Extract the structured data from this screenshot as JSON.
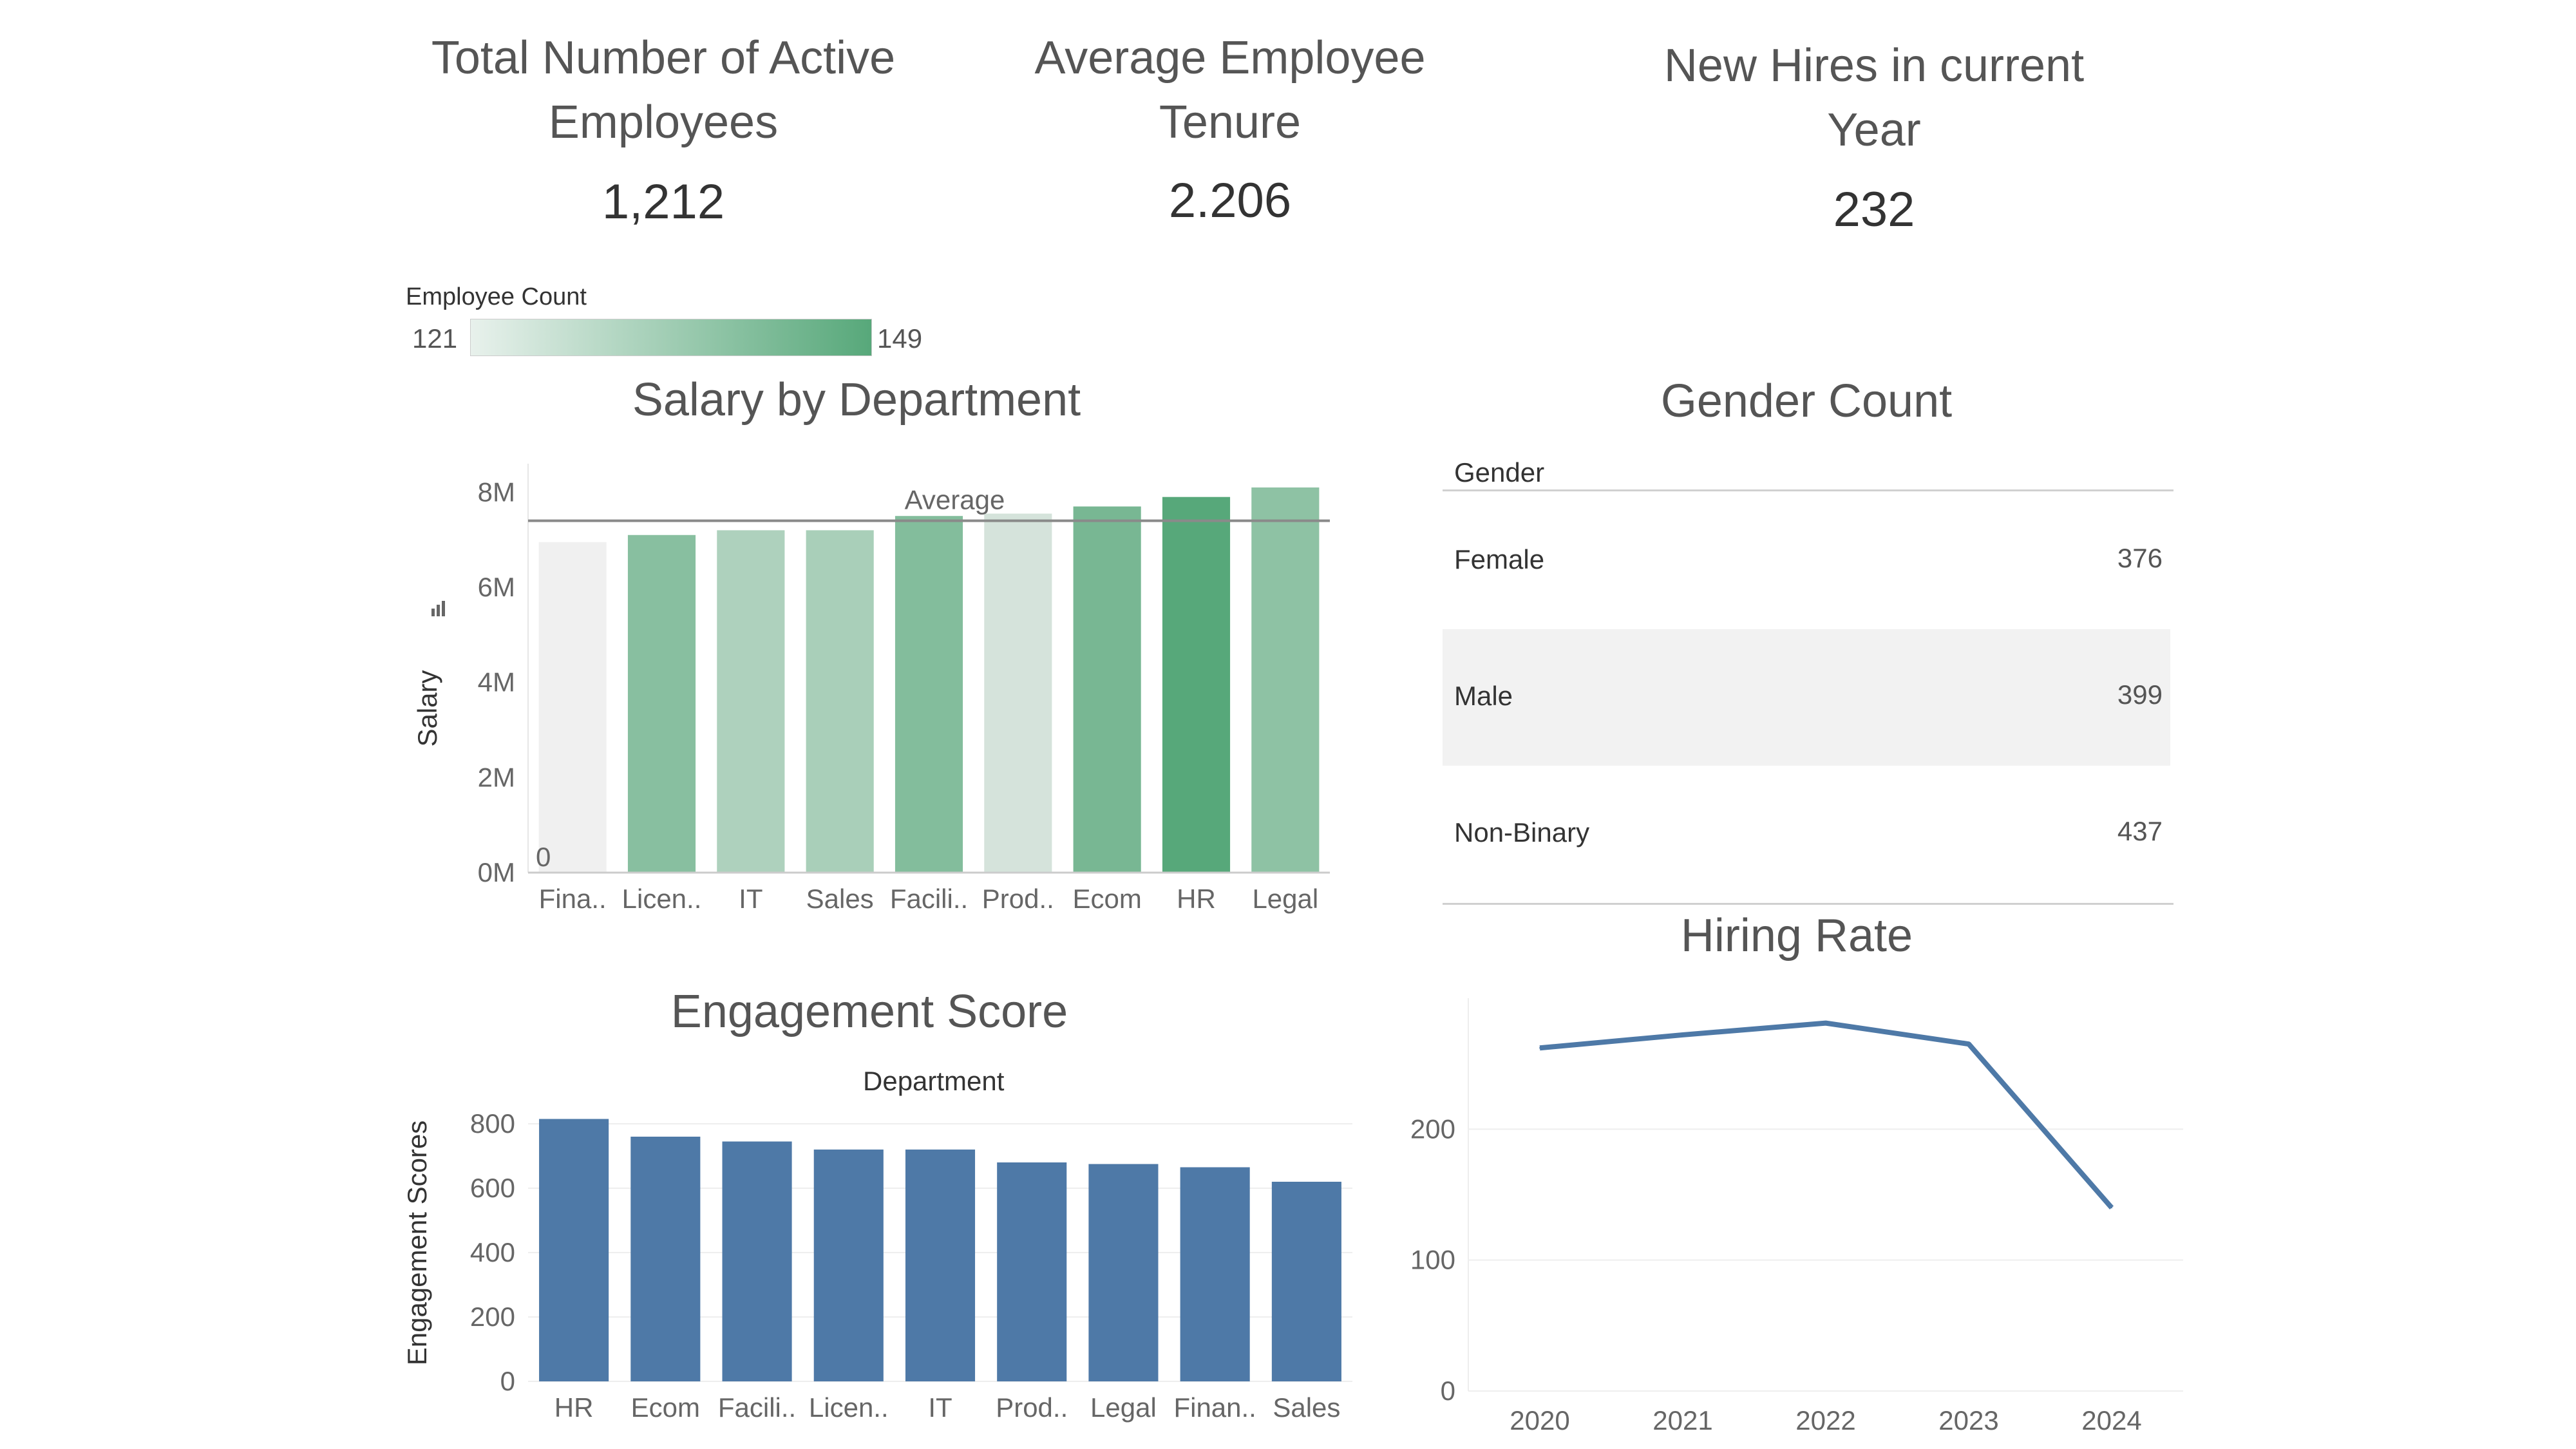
{
  "kpis": [
    {
      "title_line1": "Total Number of Active",
      "title_line2": "Employees",
      "value": "1,212"
    },
    {
      "title_line1": "Average Employee",
      "title_line2": "Tenure",
      "value": "2.206"
    },
    {
      "title_line1": "New Hires in current",
      "title_line2": "Year",
      "value": "232"
    }
  ],
  "legend": {
    "title": "Employee Count",
    "min_label": "121",
    "max_label": "149",
    "color_low": "#e8f1ec",
    "color_high": "#57a87a"
  },
  "chart_data": [
    {
      "type": "bar",
      "title": "Salary by Department",
      "ylabel": "Salary",
      "categories": [
        "Fina..",
        "Licen..",
        "IT",
        "Sales",
        "Facili..",
        "Prod..",
        "Ecom",
        "HR",
        "Legal"
      ],
      "values": [
        6.95,
        7.1,
        7.2,
        7.2,
        7.5,
        7.55,
        7.7,
        7.9,
        8.1
      ],
      "employee_counts": [
        121,
        140,
        133,
        134,
        141,
        126,
        143,
        149,
        139
      ],
      "ylim": [
        0,
        8.6
      ],
      "y_ticks": [
        0,
        2,
        4,
        6,
        8
      ],
      "y_tick_labels": [
        "0M",
        "2M",
        "4M",
        "6M",
        "8M"
      ],
      "reference_line": {
        "label": "Average",
        "value": 7.4
      },
      "first_bar_label": "0"
    },
    {
      "type": "table",
      "title": "Gender Count",
      "column_header": "Gender",
      "rows": [
        {
          "label": "Female",
          "value": "376"
        },
        {
          "label": "Male",
          "value": "399"
        },
        {
          "label": "Non-Binary",
          "value": "437"
        }
      ]
    },
    {
      "type": "bar",
      "title": "Engagement Score",
      "header": "Department",
      "ylabel": "Engagement Scores",
      "categories": [
        "HR",
        "Ecom",
        "Facili..",
        "Licen..",
        "IT",
        "Prod..",
        "Legal",
        "Finan..",
        "Sales"
      ],
      "values": [
        815,
        760,
        745,
        720,
        720,
        680,
        675,
        665,
        620
      ],
      "ylim": [
        0,
        830
      ],
      "y_ticks": [
        0,
        200,
        400,
        600,
        800
      ],
      "color": "#4e79a7"
    },
    {
      "type": "line",
      "title": "Hiring Rate",
      "x": [
        "2020",
        "2021",
        "2022",
        "2023",
        "2024"
      ],
      "values": [
        262,
        272,
        281,
        265,
        140
      ],
      "ylim": [
        0,
        300
      ],
      "y_ticks": [
        0,
        100,
        200
      ],
      "color": "#4e79a7"
    }
  ]
}
